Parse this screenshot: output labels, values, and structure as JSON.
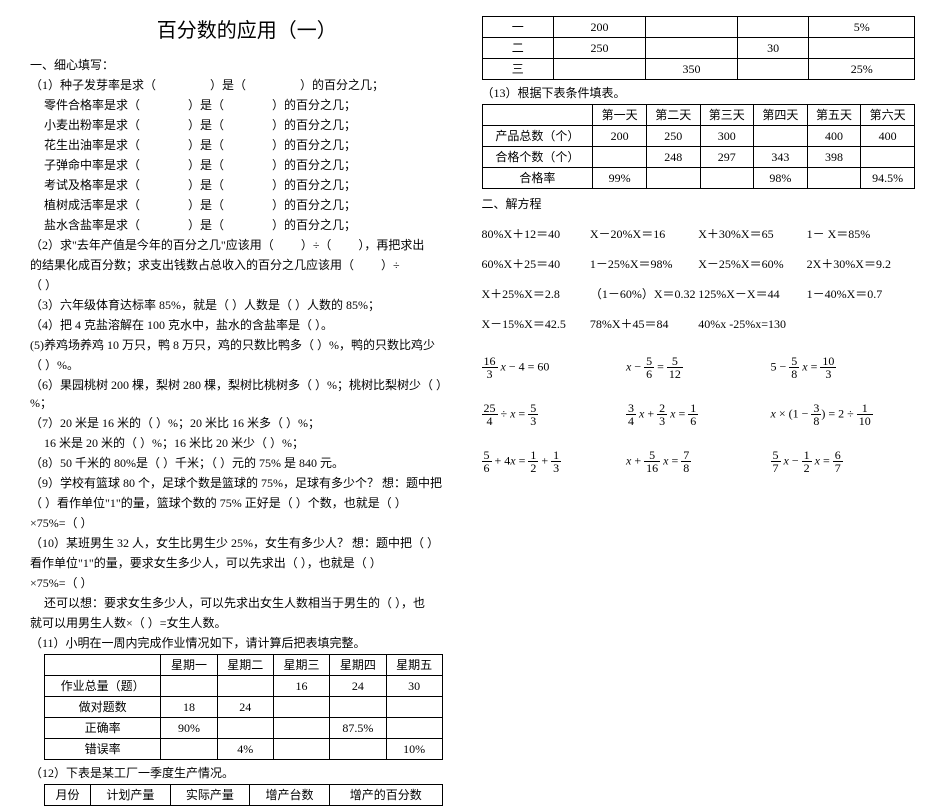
{
  "title": "百分数的应用（一）",
  "section1_title": "一、细心填写：",
  "q1": {
    "stem": "（1）种子发芽率是求（",
    "lines": [
      "零件合格率是求（",
      "小麦出粉率是求（",
      "花生出油率是求（",
      "子弹命中率是求（",
      "考试及格率是求（",
      "植树成活率是求（",
      "盐水含盐率是求（"
    ],
    "mid": "）是（",
    "tail": "）的百分之几；"
  },
  "q2a": "（2）求\"去年产值是今年的百分之几\"应该用（",
  "q2b": "）÷（",
  "q2c": "），再把求出",
  "q2d": "的结果化成百分数；求支出钱数占总收入的百分之几应该用（",
  "q2e": "）÷",
  "q2f": "（          ）",
  "q3": "（3）六年级体育达标率 85%，就是（          ）人数是（          ）人数的 85%；",
  "q4": "（4）把 4 克盐溶解在 100 克水中，盐水的含盐率是（          ）。",
  "q5a": "(5)养鸡场养鸡 10 万只，鸭 8 万只，鸡的只数比鸭多（   ）%，鸭的只数比鸡少",
  "q5b": "（          ）%。",
  "q6": "（6）果园桃树 200 棵，梨树 280 棵，梨树比桃树多（   ）%；桃树比梨树少（   ）%；",
  "q7a": "（7）20 米是 16 米的（   ）%；20 米比 16 米多（   ）%；",
  "q7b": "16 米是 20 米的（   ）%；16 米比 20 米少（   ）%；",
  "q8": "（8）50 千米的 80%是（          ）千米；（          ）元的 75% 是 840 元。",
  "q9a": "（9）学校有篮球 80 个，足球个数是篮球的 75%，足球有多少个？  想：题中把",
  "q9b": "（          ）看作单位\"1\"的量，篮球个数的 75% 正好是（   ）个数，也就是（   ）",
  "q9c": "×75%=（   ）",
  "q10a": "（10）某班男生 32 人，女生比男生少 25%，女生有多少人？  想：题中把（   ）",
  "q10b": "看作单位\"1\"的量，要求女生多少人，可以先求出（          ），也就是（   ）",
  "q10c": "×75%=（   ）",
  "q10d": "还可以想：要求女生多少人，可以先求出女生人数相当于男生的（          ），也",
  "q10e": "就可以用男生人数×（          ）=女生人数。",
  "q11": "（11）小明在一周内完成作业情况如下，请计算后把表填完整。",
  "table11": {
    "cols": [
      "",
      "星期一",
      "星期二",
      "星期三",
      "星期四",
      "星期五"
    ],
    "rows": [
      [
        "作业总量（题）",
        "",
        "",
        "16",
        "24",
        "30"
      ],
      [
        "做对题数",
        "18",
        "24",
        "",
        "",
        ""
      ],
      [
        "正确率",
        "90%",
        "",
        "",
        "87.5%",
        ""
      ],
      [
        "错误率",
        "",
        "4%",
        "",
        "",
        "10%"
      ]
    ]
  },
  "q12": "（12）下表是某工厂一季度生产情况。",
  "table12": {
    "cols": [
      "月份",
      "计划产量",
      "实际产量",
      "增产台数",
      "增产的百分数"
    ],
    "rows": []
  },
  "table12b": {
    "rows": [
      [
        "一",
        "200",
        "",
        "",
        "5%"
      ],
      [
        "二",
        "250",
        "",
        "30",
        ""
      ],
      [
        "三",
        "",
        "350",
        "",
        "25%"
      ]
    ]
  },
  "q13": "（13）根据下表条件填表。",
  "table13": {
    "cols": [
      "",
      "第一天",
      "第二天",
      "第三天",
      "第四天",
      "第五天",
      "第六天"
    ],
    "rows": [
      [
        "产品总数（个）",
        "200",
        "250",
        "300",
        "",
        "400",
        "400"
      ],
      [
        "合格个数（个）",
        "",
        "248",
        "297",
        "343",
        "398",
        ""
      ],
      [
        "合格率",
        "99%",
        "",
        "",
        "98%",
        "",
        "94.5%"
      ]
    ]
  },
  "section2_title": "二、解方程",
  "eqs": [
    [
      "80%X＋12＝40",
      "X－20%X＝16",
      "X＋30%X＝65",
      "1－ X＝85%"
    ],
    [
      "60%X＋25＝40",
      "1－25%X＝98%",
      "X－25%X＝60%",
      "2X＋30%X＝9.2"
    ],
    [
      "X＋25%X＝2.8",
      "（1－60%）X＝0.32",
      "125%X－X＝44",
      "1－40%X＝0.7"
    ],
    [
      "X－15%X＝42.5",
      "78%X＋45＝84",
      "40%x  -25%x=130",
      ""
    ]
  ],
  "frac_eqs": [
    {
      "items": [
        {
          "html": "<span class='frac'><span class='n'>16</span><span class='d'>3</span></span> <i>x</i> − 4 = 60"
        },
        {
          "html": "<i>x</i> − <span class='frac'><span class='n'>5</span><span class='d'>6</span></span> = <span class='frac'><span class='n'>5</span><span class='d'>12</span></span>"
        },
        {
          "html": "5 − <span class='frac'><span class='n'>5</span><span class='d'>8</span></span> <i>x</i> = <span class='frac'><span class='n'>10</span><span class='d'>3</span></span>"
        }
      ]
    },
    {
      "items": [
        {
          "html": "<span class='frac'><span class='n'>25</span><span class='d'>4</span></span> ÷ <i>x</i> = <span class='frac'><span class='n'>5</span><span class='d'>3</span></span>"
        },
        {
          "html": "<span class='frac'><span class='n'>3</span><span class='d'>4</span></span> <i>x</i> + <span class='frac'><span class='n'>2</span><span class='d'>3</span></span> <i>x</i> = <span class='frac'><span class='n'>1</span><span class='d'>6</span></span>"
        },
        {
          "html": "<i>x</i> × (1 − <span class='frac'><span class='n'>3</span><span class='d'>8</span></span>) = 2 ÷ <span class='frac'><span class='n'>1</span><span class='d'>10</span></span>"
        }
      ]
    },
    {
      "items": [
        {
          "html": "<span class='frac'><span class='n'>5</span><span class='d'>6</span></span> + 4<i>x</i> = <span class='frac'><span class='n'>1</span><span class='d'>2</span></span> + <span class='frac'><span class='n'>1</span><span class='d'>3</span></span>"
        },
        {
          "html": "<i>x</i> + <span class='frac'><span class='n'>5</span><span class='d'>16</span></span> <i>x</i> = <span class='frac'><span class='n'>7</span><span class='d'>8</span></span>"
        },
        {
          "html": "<span class='frac'><span class='n'>5</span><span class='d'>7</span></span> <i>x</i> − <span class='frac'><span class='n'>1</span><span class='d'>2</span></span> <i>x</i> = <span class='frac'><span class='n'>6</span><span class='d'>7</span></span>"
        }
      ]
    }
  ]
}
